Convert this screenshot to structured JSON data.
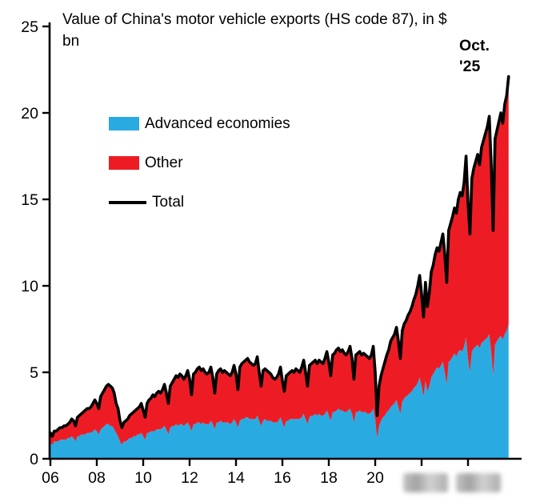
{
  "title": {
    "line1": "Value of China's motor vehicle exports (HS code 87), in $",
    "line2": "bn"
  },
  "annotation": {
    "line1": "Oct.",
    "line2": "'25"
  },
  "colors": {
    "advanced": "#29ABE2",
    "other": "#ED1C24",
    "total": "#000000",
    "axis": "#000000"
  },
  "chart_data": {
    "type": "area",
    "stacked": true,
    "title": "Value of China's motor vehicle exports (HS code 87), in $ bn",
    "units": "$ bn",
    "frequency": "monthly",
    "x_start": {
      "year": 2006,
      "month": 1
    },
    "x_end": {
      "year": 2025,
      "month": 10
    },
    "ylim": [
      0,
      25
    ],
    "y_ticks": [
      0,
      5,
      10,
      15,
      20,
      25
    ],
    "x_ticks": [
      {
        "year": 2006,
        "label": "06"
      },
      {
        "year": 2008,
        "label": "08"
      },
      {
        "year": 2010,
        "label": "10"
      },
      {
        "year": 2012,
        "label": "12"
      },
      {
        "year": 2014,
        "label": "14"
      },
      {
        "year": 2016,
        "label": "16"
      },
      {
        "year": 2018,
        "label": "18"
      },
      {
        "year": 2020,
        "label": "20"
      },
      {
        "year": 2022,
        "label": ""
      },
      {
        "year": 2024,
        "label": ""
      }
    ],
    "legend_position": "upper-left-inside",
    "grid": false,
    "series": [
      {
        "name": "Advanced economies",
        "color": "#29ABE2",
        "style": "area",
        "values": [
          0.9,
          0.8,
          1.0,
          1.0,
          1.0,
          1.1,
          1.1,
          1.1,
          1.1,
          1.2,
          1.2,
          1.3,
          1.2,
          1.0,
          1.3,
          1.3,
          1.4,
          1.4,
          1.4,
          1.5,
          1.5,
          1.5,
          1.6,
          1.7,
          1.6,
          1.4,
          1.7,
          1.8,
          1.9,
          2.0,
          2.0,
          1.9,
          1.9,
          1.7,
          1.5,
          1.3,
          1.0,
          0.8,
          1.0,
          1.0,
          1.1,
          1.2,
          1.2,
          1.3,
          1.3,
          1.4,
          1.4,
          1.5,
          1.3,
          1.1,
          1.5,
          1.5,
          1.6,
          1.6,
          1.6,
          1.7,
          1.7,
          1.7,
          1.8,
          1.9,
          1.7,
          1.4,
          1.8,
          1.9,
          1.9,
          2.0,
          1.9,
          2.0,
          2.0,
          1.9,
          2.0,
          2.1,
          1.9,
          1.6,
          2.0,
          2.0,
          2.1,
          2.1,
          2.0,
          2.1,
          2.0,
          2.0,
          2.0,
          2.2,
          2.0,
          1.7,
          2.1,
          2.1,
          2.2,
          2.1,
          2.1,
          2.1,
          2.1,
          2.0,
          2.1,
          2.3,
          2.1,
          1.8,
          2.2,
          2.3,
          2.3,
          2.4,
          2.4,
          2.3,
          2.3,
          2.3,
          2.3,
          2.5,
          2.2,
          1.9,
          2.2,
          2.3,
          2.2,
          2.2,
          2.2,
          2.1,
          2.1,
          2.1,
          2.2,
          2.4,
          2.1,
          1.8,
          2.2,
          2.2,
          2.3,
          2.3,
          2.3,
          2.3,
          2.3,
          2.3,
          2.4,
          2.6,
          2.3,
          2.0,
          2.4,
          2.5,
          2.5,
          2.6,
          2.5,
          2.6,
          2.5,
          2.5,
          2.6,
          2.8,
          2.5,
          2.2,
          2.7,
          2.7,
          2.8,
          2.9,
          2.8,
          2.8,
          2.7,
          2.7,
          2.8,
          2.9,
          2.6,
          2.1,
          2.7,
          2.7,
          2.8,
          2.7,
          2.7,
          2.7,
          2.6,
          2.6,
          2.7,
          2.9,
          2.3,
          1.2,
          1.9,
          2.2,
          2.4,
          2.5,
          2.7,
          2.8,
          3.0,
          3.1,
          3.2,
          3.4,
          3.0,
          2.6,
          3.3,
          3.5,
          3.6,
          3.7,
          3.8,
          3.9,
          4.1,
          4.2,
          4.4,
          4.7,
          4.2,
          3.6,
          4.5,
          3.9,
          4.2,
          4.7,
          4.9,
          5.1,
          5.3,
          5.2,
          5.4,
          5.6,
          5.0,
          4.3,
          5.6,
          5.7,
          5.9,
          6.1,
          5.9,
          6.2,
          6.3,
          6.2,
          6.5,
          7.0,
          5.8,
          5.0,
          6.2,
          6.4,
          6.5,
          6.6,
          6.4,
          6.7,
          6.8,
          6.9,
          7.0,
          7.2,
          6.2,
          4.8,
          6.6,
          6.8,
          7.0,
          7.1,
          6.9,
          7.2,
          7.4,
          7.8
        ]
      },
      {
        "name": "Other",
        "color": "#ED1C24",
        "style": "area",
        "values": [
          0.6,
          0.5,
          0.6,
          0.6,
          0.7,
          0.7,
          0.7,
          0.8,
          0.8,
          0.8,
          0.9,
          1.0,
          1.0,
          0.9,
          1.1,
          1.2,
          1.2,
          1.3,
          1.4,
          1.4,
          1.4,
          1.5,
          1.6,
          1.7,
          1.6,
          1.5,
          1.9,
          2.0,
          2.1,
          2.2,
          2.3,
          2.3,
          2.2,
          2.1,
          1.7,
          1.6,
          1.2,
          1.0,
          1.1,
          1.2,
          1.2,
          1.3,
          1.4,
          1.4,
          1.5,
          1.5,
          1.6,
          1.7,
          1.5,
          1.3,
          1.7,
          1.9,
          1.9,
          2.1,
          2.0,
          2.1,
          2.2,
          2.1,
          2.2,
          2.4,
          2.1,
          1.8,
          2.4,
          2.5,
          2.7,
          2.8,
          2.8,
          2.9,
          2.8,
          2.7,
          2.8,
          3.0,
          2.7,
          2.1,
          2.9,
          3.0,
          3.1,
          3.2,
          3.1,
          3.1,
          3.0,
          2.9,
          3.0,
          3.1,
          2.7,
          2.1,
          2.8,
          3.0,
          3.0,
          2.9,
          3.0,
          2.9,
          2.8,
          2.8,
          2.9,
          3.1,
          2.8,
          2.2,
          3.1,
          3.2,
          3.3,
          3.3,
          3.4,
          3.3,
          3.2,
          3.1,
          3.2,
          3.4,
          2.8,
          2.3,
          2.9,
          2.9,
          2.9,
          2.8,
          2.7,
          2.6,
          2.5,
          2.6,
          2.7,
          2.9,
          2.4,
          2.1,
          2.6,
          2.7,
          2.7,
          2.8,
          2.7,
          2.9,
          2.8,
          2.7,
          2.9,
          3.1,
          2.7,
          2.2,
          3.0,
          3.0,
          3.1,
          3.1,
          3.0,
          3.1,
          3.1,
          3.0,
          3.2,
          3.4,
          3.1,
          2.6,
          3.3,
          3.4,
          3.5,
          3.5,
          3.4,
          3.5,
          3.4,
          3.3,
          3.4,
          3.6,
          3.2,
          2.5,
          3.3,
          3.4,
          3.4,
          3.3,
          3.4,
          3.3,
          3.3,
          3.2,
          3.3,
          3.6,
          2.7,
          1.3,
          2.3,
          2.6,
          2.8,
          3.1,
          3.3,
          3.5,
          3.8,
          3.9,
          4.0,
          4.2,
          3.8,
          3.2,
          4.1,
          4.3,
          4.4,
          4.6,
          4.7,
          4.9,
          5.1,
          5.3,
          5.6,
          5.9,
          5.3,
          4.6,
          5.7,
          4.9,
          5.4,
          6.1,
          6.3,
          6.7,
          6.9,
          6.8,
          7.1,
          7.4,
          6.8,
          5.9,
          7.6,
          7.9,
          8.1,
          8.4,
          8.3,
          8.8,
          9.1,
          9.0,
          9.5,
          10.5,
          9.0,
          8.0,
          10.0,
          10.4,
          10.7,
          11.0,
          10.6,
          11.3,
          11.6,
          11.9,
          12.2,
          12.6,
          10.8,
          8.4,
          11.9,
          12.2,
          12.5,
          12.9,
          12.5,
          13.3,
          13.6,
          14.3
        ]
      },
      {
        "name": "Total",
        "color": "#000000",
        "style": "line",
        "values": [
          1.5,
          1.3,
          1.6,
          1.6,
          1.7,
          1.8,
          1.8,
          1.9,
          1.9,
          2.0,
          2.1,
          2.3,
          2.2,
          1.9,
          2.4,
          2.5,
          2.6,
          2.7,
          2.8,
          2.9,
          2.9,
          3.0,
          3.2,
          3.4,
          3.2,
          2.9,
          3.6,
          3.8,
          4.0,
          4.2,
          4.3,
          4.2,
          4.1,
          3.8,
          3.2,
          2.9,
          2.2,
          1.8,
          2.1,
          2.2,
          2.3,
          2.5,
          2.6,
          2.7,
          2.8,
          2.9,
          3.0,
          3.2,
          2.8,
          2.4,
          3.2,
          3.4,
          3.5,
          3.7,
          3.6,
          3.8,
          3.9,
          3.8,
          4.0,
          4.3,
          3.8,
          3.2,
          4.2,
          4.4,
          4.6,
          4.8,
          4.7,
          4.9,
          4.8,
          4.6,
          4.8,
          5.1,
          4.6,
          3.7,
          4.9,
          5.0,
          5.2,
          5.3,
          5.1,
          5.2,
          5.0,
          4.9,
          5.0,
          5.3,
          4.7,
          3.8,
          4.9,
          5.1,
          5.2,
          5.0,
          5.1,
          5.0,
          4.9,
          4.8,
          5.0,
          5.4,
          4.9,
          4.0,
          5.3,
          5.5,
          5.6,
          5.7,
          5.8,
          5.6,
          5.5,
          5.4,
          5.5,
          5.9,
          5.0,
          4.2,
          5.1,
          5.2,
          5.1,
          5.0,
          4.9,
          4.7,
          4.6,
          4.7,
          4.9,
          5.3,
          4.5,
          3.9,
          4.8,
          4.9,
          5.0,
          5.1,
          5.0,
          5.2,
          5.1,
          5.0,
          5.3,
          5.7,
          5.0,
          4.2,
          5.4,
          5.5,
          5.6,
          5.7,
          5.5,
          5.7,
          5.6,
          5.5,
          5.8,
          6.2,
          5.6,
          4.8,
          6.0,
          6.1,
          6.3,
          6.4,
          6.2,
          6.3,
          6.1,
          6.0,
          6.2,
          6.5,
          5.8,
          4.6,
          6.0,
          6.1,
          6.2,
          6.0,
          6.1,
          6.0,
          5.9,
          5.8,
          6.0,
          6.5,
          5.0,
          2.5,
          4.2,
          4.8,
          5.2,
          5.6,
          6.0,
          6.3,
          6.8,
          7.0,
          7.2,
          7.6,
          6.8,
          5.8,
          7.4,
          7.8,
          8.0,
          8.3,
          8.5,
          8.8,
          9.2,
          9.5,
          10.0,
          10.6,
          9.5,
          8.2,
          10.2,
          8.8,
          9.6,
          10.8,
          11.2,
          11.8,
          12.2,
          12.0,
          12.5,
          13.0,
          11.8,
          10.2,
          13.2,
          13.6,
          14.0,
          14.5,
          14.2,
          15.0,
          15.4,
          15.2,
          16.0,
          17.5,
          14.8,
          13.0,
          16.2,
          16.8,
          17.2,
          17.6,
          17.0,
          18.0,
          18.4,
          18.8,
          19.2,
          19.8,
          17.0,
          13.2,
          18.5,
          19.0,
          19.5,
          20.0,
          19.4,
          20.5,
          21.0,
          22.1
        ]
      }
    ]
  }
}
